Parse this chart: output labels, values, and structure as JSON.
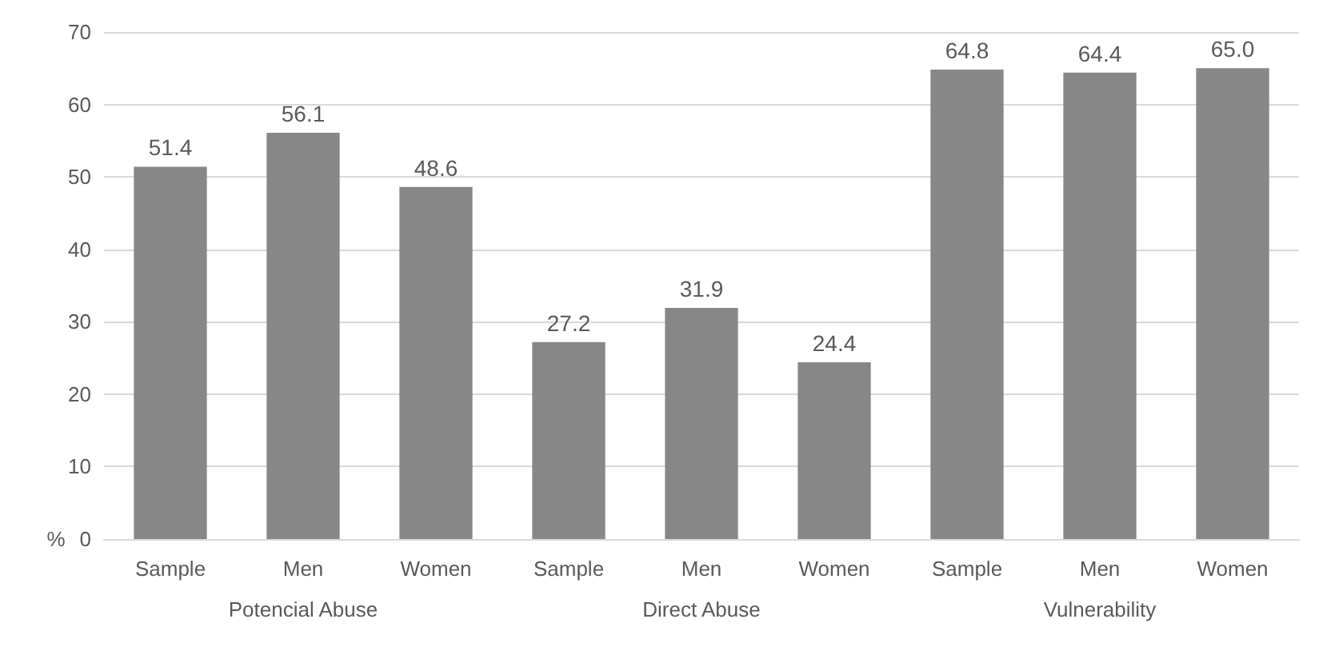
{
  "chart_data": {
    "type": "bar",
    "ylabel": "%",
    "categories": [
      "Sample",
      "Men",
      "Women",
      "Sample",
      "Men",
      "Women",
      "Sample",
      "Men",
      "Women"
    ],
    "values": [
      51.4,
      56.1,
      48.6,
      27.2,
      31.9,
      24.4,
      64.8,
      64.4,
      65.0
    ],
    "color": "#878787",
    "annotations": [
      "Potencial Abuse",
      "Direct Abuse",
      "Vulnerability"
    ],
    "value_labels": [
      "51.4",
      "56.1",
      "48.6",
      "27.2",
      "31.9",
      "24.4",
      "64.8",
      "64.4",
      "65.0"
    ],
    "ylim": [
      0,
      70
    ],
    "yticks": [
      0,
      10,
      20,
      30,
      40,
      50,
      60,
      70
    ],
    "grid": "y"
  }
}
